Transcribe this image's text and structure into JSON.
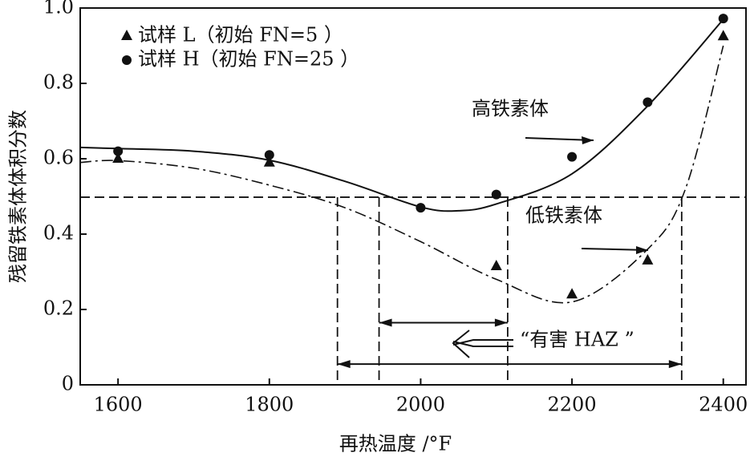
{
  "chart_data": {
    "type": "scatter",
    "xlabel": "再热温度 /°F",
    "ylabel": "残留铁素体体积分数",
    "xlim": [
      1550,
      2430
    ],
    "xticks": [
      1600,
      1800,
      2000,
      2200,
      2400
    ],
    "ylim": [
      0,
      1
    ],
    "yticks": [
      0,
      0.2,
      0.4,
      0.6,
      0.8,
      {
        "value": 1,
        "label": "1.0"
      }
    ],
    "legend": "upper left",
    "series": [
      {
        "name": "试样 L（初始  FN=5 ）",
        "marker": "triangle",
        "color": "#111111",
        "x": [
          1600,
          1800,
          2100,
          2200,
          2300,
          2400
        ],
        "values": [
          0.6,
          0.59,
          0.315,
          0.24,
          0.33,
          0.925
        ]
      },
      {
        "name": "试样 H（初始  FN=25 ）",
        "marker": "circle",
        "color": "#111111",
        "x": [
          1600,
          1800,
          2000,
          2100,
          2200,
          2300,
          2400
        ],
        "values": [
          0.62,
          0.61,
          0.47,
          0.505,
          0.605,
          0.75,
          0.972
        ]
      }
    ],
    "curves": [
      {
        "label": "高铁素体",
        "style": "solid",
        "x": [
          1550,
          1600,
          1700,
          1800,
          1900,
          2000,
          2050,
          2100,
          2200,
          2300,
          2400
        ],
        "values": [
          0.63,
          0.627,
          0.62,
          0.596,
          0.54,
          0.472,
          0.462,
          0.48,
          0.56,
          0.74,
          0.97
        ]
      },
      {
        "label": "低铁素体",
        "style": "dashdot",
        "x": [
          1550,
          1600,
          1700,
          1800,
          1900,
          2000,
          2100,
          2200,
          2300,
          2350,
          2400
        ],
        "values": [
          0.59,
          0.595,
          0.575,
          0.53,
          0.47,
          0.38,
          0.28,
          0.22,
          0.36,
          0.52,
          0.9
        ]
      }
    ],
    "hline": 0.498,
    "vlines": [
      1890,
      1945,
      2115,
      2345
    ],
    "ranges": [
      {
        "x": [
          1945,
          2115
        ],
        "y": 0.165
      },
      {
        "x": [
          1890,
          2345
        ],
        "y": 0.055
      }
    ],
    "annotation": "“有害 HAZ ”"
  }
}
